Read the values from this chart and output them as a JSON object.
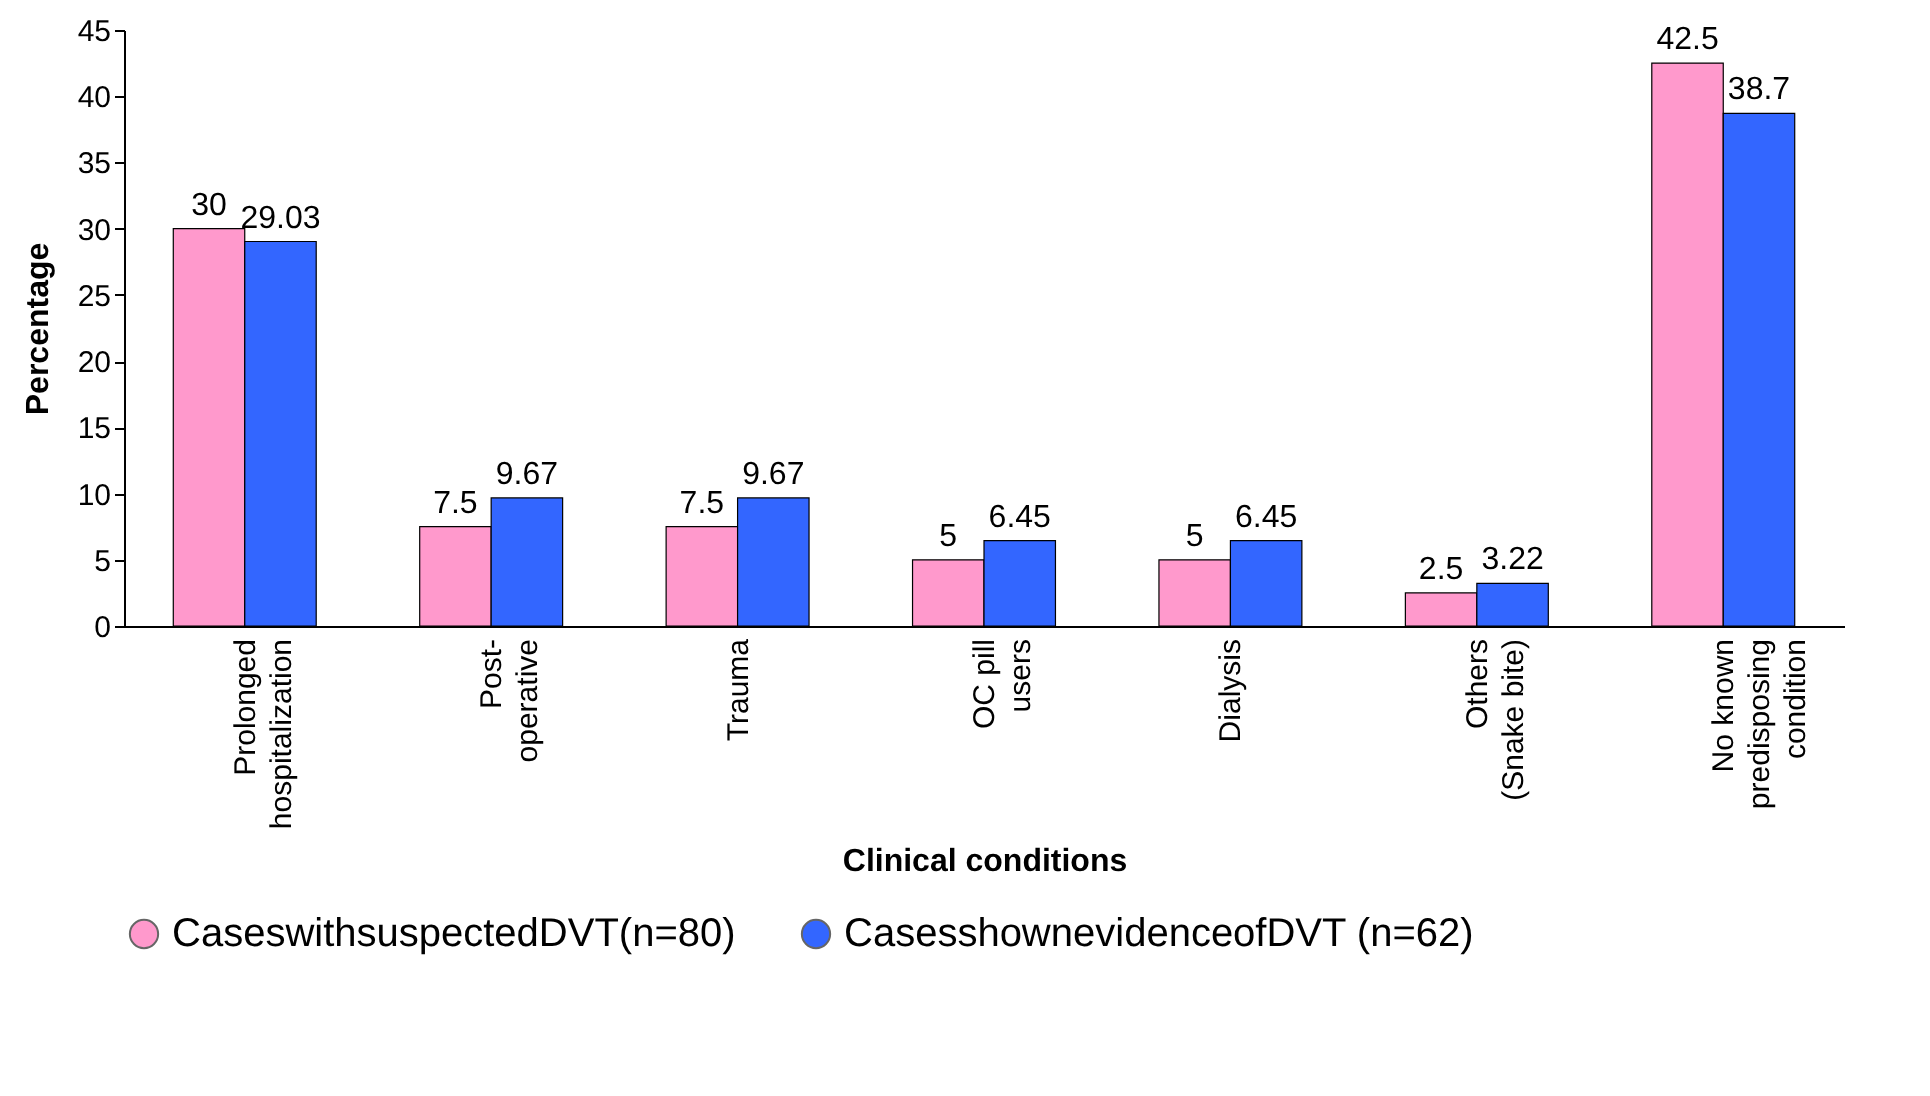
{
  "chart_data": {
    "type": "bar",
    "xlabel": "Clinical conditions",
    "ylabel": "Percentage",
    "categories": [
      "Prolonged\nhospitalization",
      "Post-\noperative",
      "Trauma",
      "OC pill\nusers",
      "Dialysis",
      "Others\n(Snake bite)",
      "No known\npredisposing\ncondition"
    ],
    "series": [
      {
        "name": "CaseswithsuspectedDVT(n=80)",
        "color": "#ff99cc",
        "values": [
          30,
          7.5,
          7.5,
          5,
          5,
          2.5,
          42.5
        ]
      },
      {
        "name": "CasesshownevidenceofDVT (n=62)",
        "color": "#3366ff",
        "values": [
          29.03,
          9.67,
          9.67,
          6.45,
          6.45,
          3.22,
          38.7
        ]
      }
    ],
    "ylim": [
      0,
      45
    ],
    "yticks": [
      0,
      5,
      10,
      15,
      20,
      25,
      30,
      35,
      40,
      45
    ],
    "data_labels": true,
    "grid": false,
    "legend": "bottom left"
  }
}
